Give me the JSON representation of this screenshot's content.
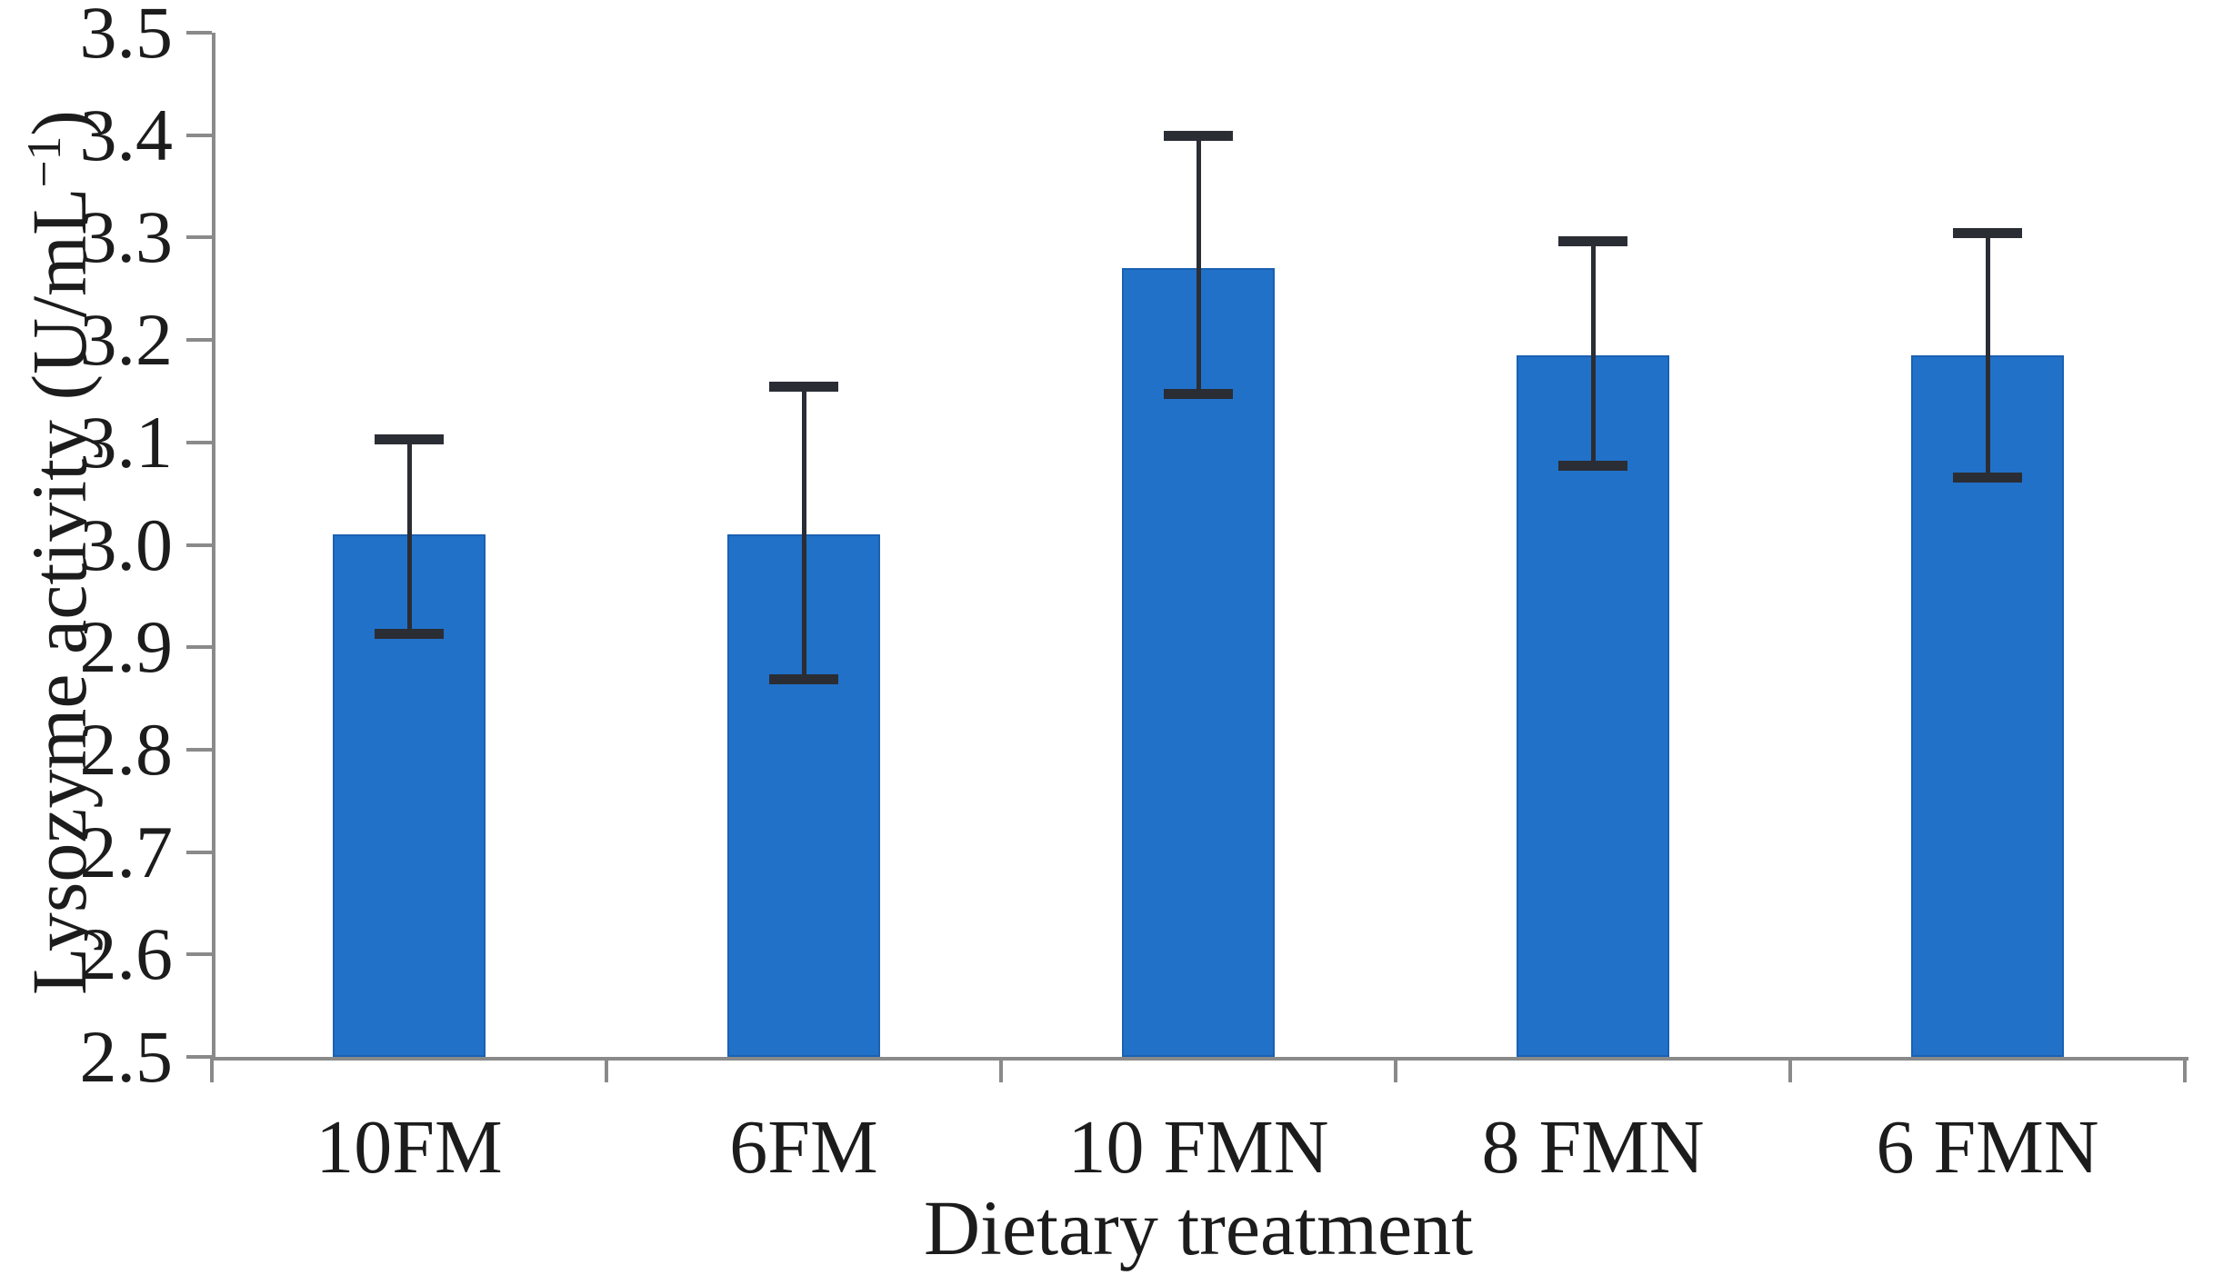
{
  "chart_data": {
    "type": "bar",
    "title": "",
    "xlabel": "Dietary treatment",
    "ylabel": "Lysozyme activity (U/mL⁻¹)",
    "ylabel_parts": {
      "prefix": "Lysozyme activity (U/mL",
      "sup": "−1",
      "suffix": ")"
    },
    "categories": [
      "10FM",
      "6FM",
      "10 FMN",
      "8 FMN",
      "6 FMN"
    ],
    "values": [
      3.01,
      3.01,
      3.27,
      3.185,
      3.185
    ],
    "error_upper": [
      3.103,
      3.155,
      3.4,
      3.297,
      3.305
    ],
    "error_lower": [
      2.913,
      2.868,
      3.147,
      3.077,
      3.065
    ],
    "ylim": [
      2.5,
      3.5
    ],
    "ytick_labels": [
      "2.5",
      "2.6",
      "2.7",
      "2.8",
      "2.9",
      "3.0",
      "3.1",
      "3.2",
      "3.3",
      "3.4",
      "3.5"
    ],
    "grid": false,
    "legend": null,
    "colors": {
      "bar": "#2171c9",
      "bar_border": "#1a61b2",
      "error": "#2a2d34",
      "axis": "#8a8a8a",
      "text": "#1c1c1c"
    }
  }
}
